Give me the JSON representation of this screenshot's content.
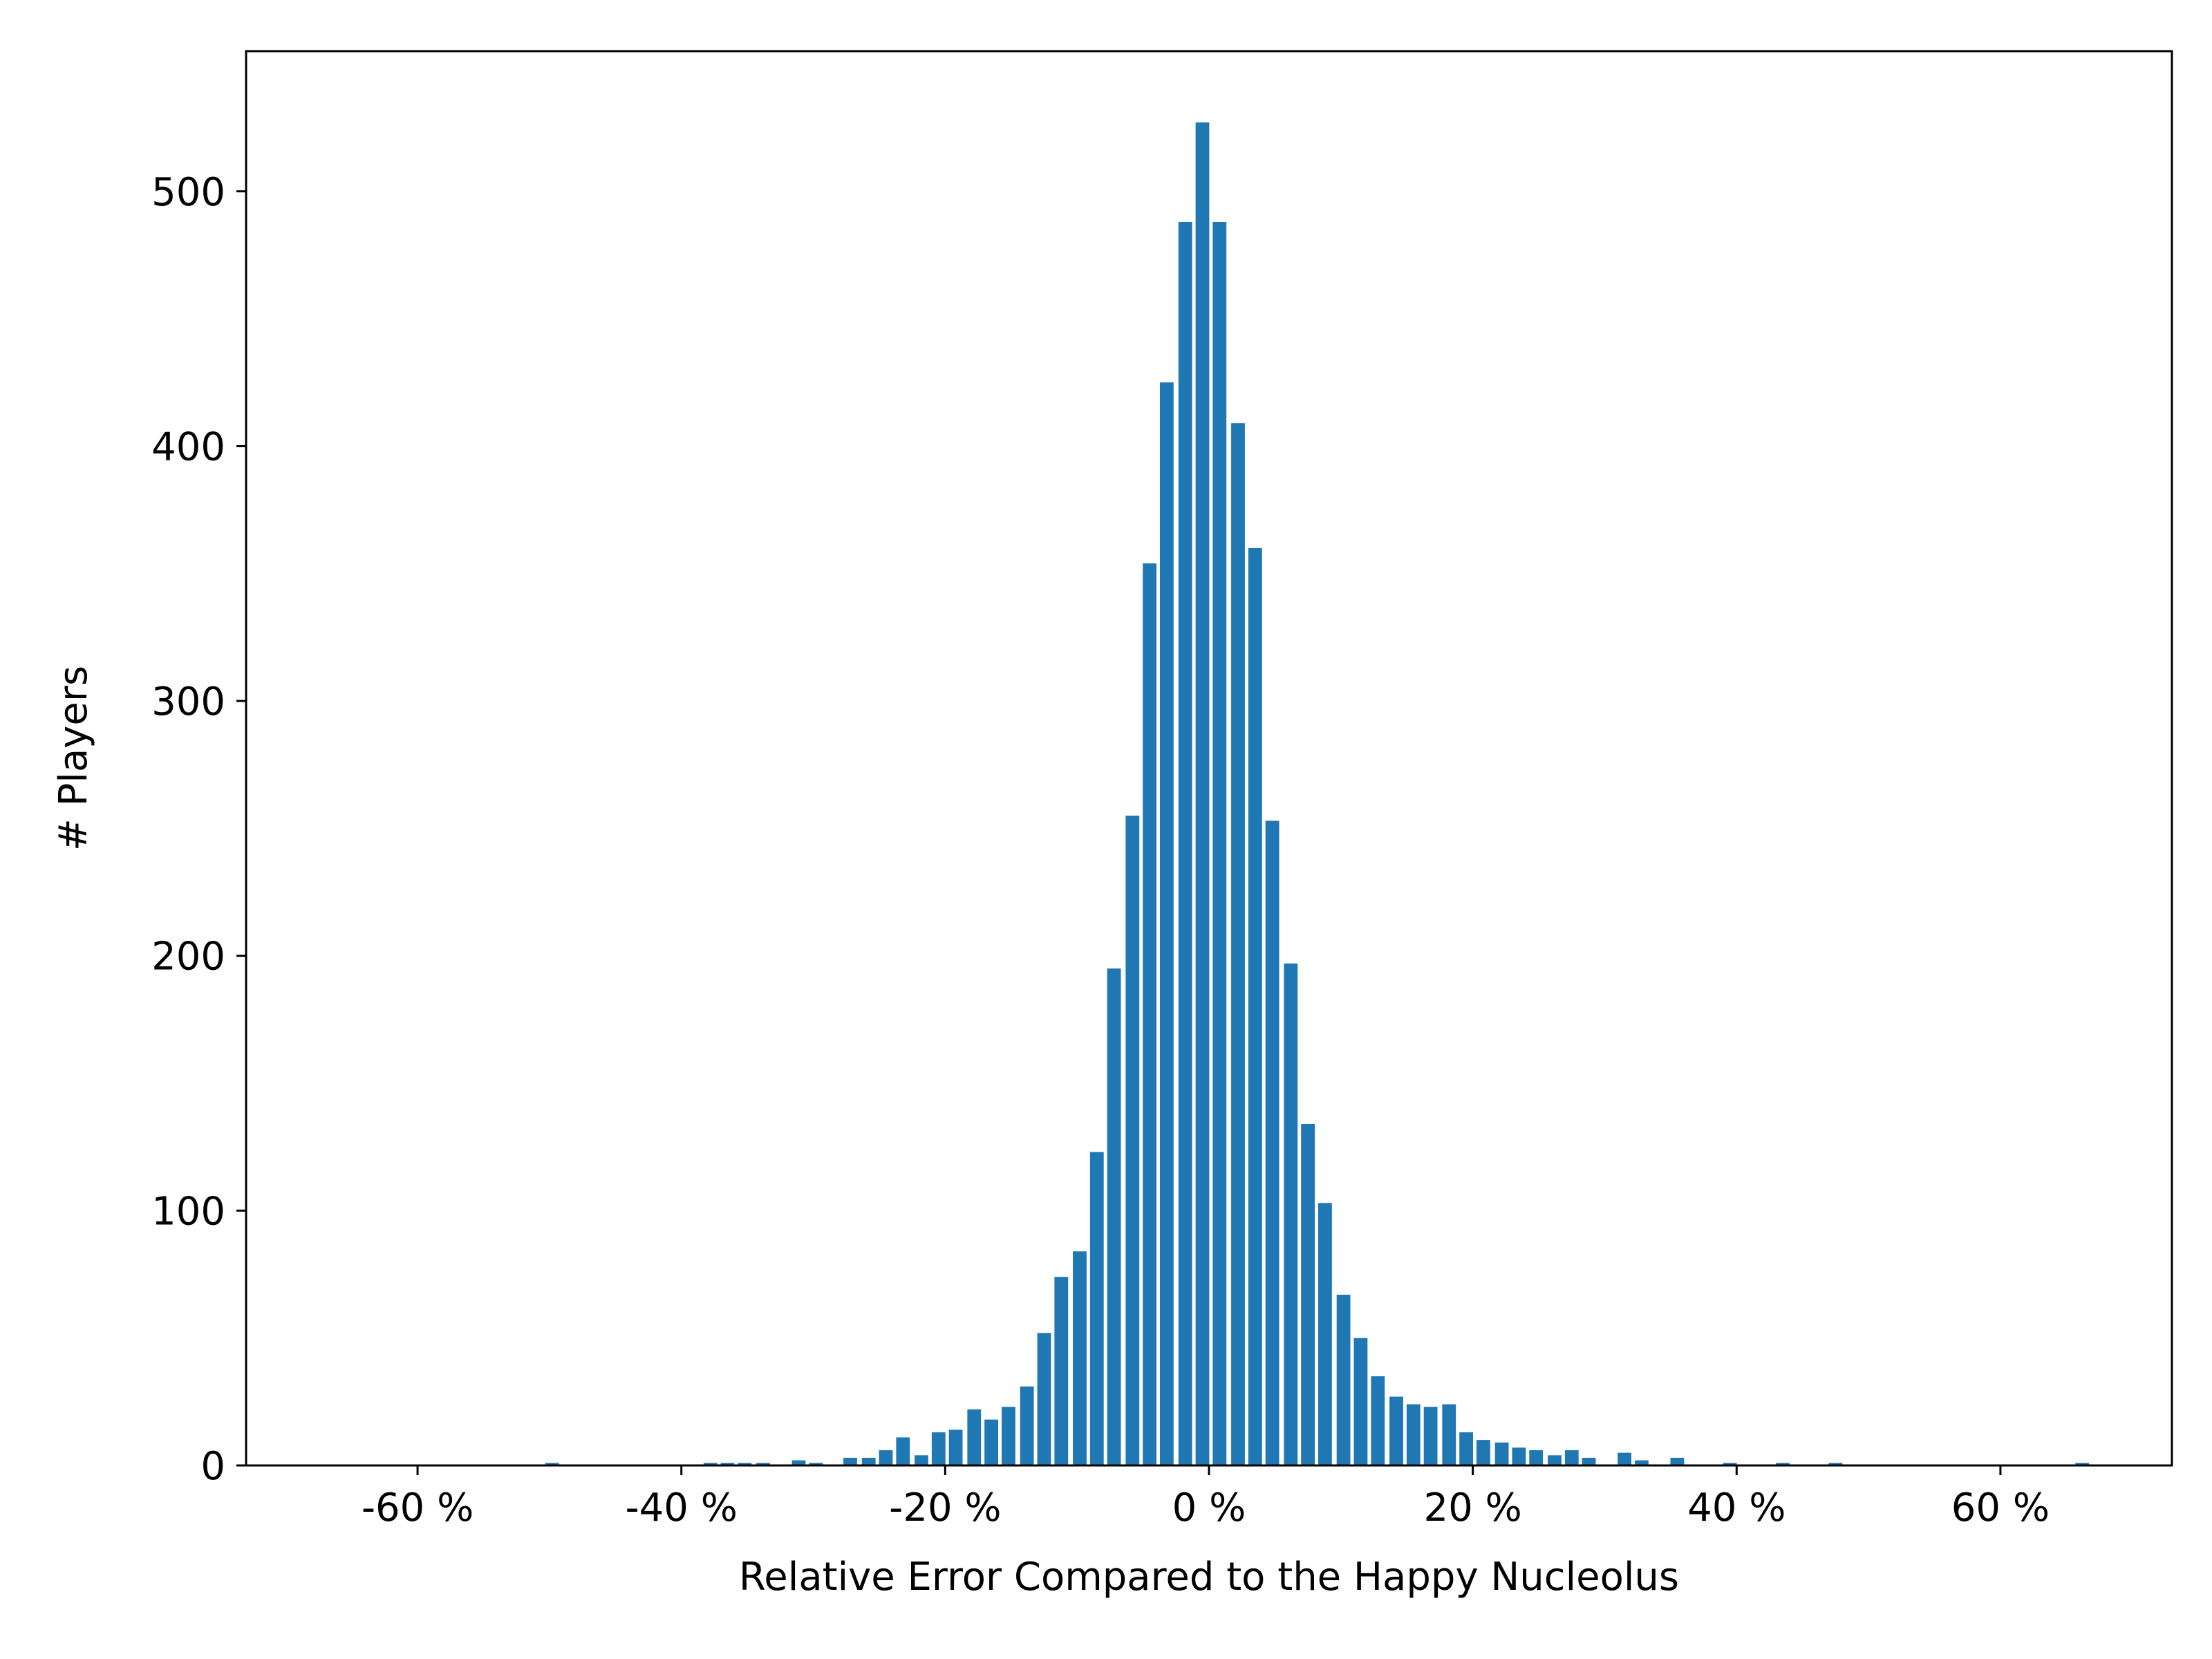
{
  "chart_data": {
    "type": "bar",
    "title": "",
    "xlabel": "Relative Error Compared to the Happy Nucleolus",
    "ylabel": "# Players",
    "xlim": [
      -73,
      73
    ],
    "ylim": [
      0,
      555
    ],
    "x_ticks": [
      -60,
      -40,
      -20,
      0,
      20,
      40,
      60
    ],
    "x_tick_labels": [
      "-60 %",
      "-40 %",
      "-20 %",
      "0 %",
      "20 %",
      "40 %",
      "60 %"
    ],
    "y_ticks": [
      0,
      100,
      200,
      300,
      400,
      500
    ],
    "y_tick_labels": [
      "0",
      "100",
      "200",
      "300",
      "400",
      "500"
    ],
    "bin_width": 1.33,
    "bar_color": "#1f77b4",
    "grid": false,
    "legend": "none",
    "x": [
      -49.8,
      -37.8,
      -36.5,
      -35.2,
      -33.8,
      -31.1,
      -29.8,
      -27.2,
      -25.8,
      -24.5,
      -23.2,
      -21.8,
      -20.5,
      -19.2,
      -17.8,
      -16.5,
      -15.2,
      -13.8,
      -12.5,
      -11.2,
      -9.8,
      -8.5,
      -7.2,
      -5.8,
      -4.5,
      -3.2,
      -1.8,
      -0.5,
      0.8,
      2.2,
      3.5,
      4.8,
      6.2,
      7.5,
      8.8,
      10.2,
      11.5,
      12.8,
      14.2,
      15.5,
      16.8,
      18.2,
      19.5,
      20.8,
      22.2,
      23.5,
      24.8,
      26.2,
      27.5,
      28.8,
      31.5,
      32.8,
      35.5,
      39.5,
      43.5,
      47.5,
      66.2
    ],
    "values": [
      1,
      1,
      1,
      1,
      1,
      2,
      1,
      3,
      3,
      6,
      11,
      4,
      13,
      14,
      22,
      18,
      23,
      31,
      52,
      74,
      84,
      123,
      195,
      255,
      354,
      425,
      488,
      527,
      488,
      409,
      360,
      253,
      197,
      134,
      103,
      67,
      50,
      35,
      27,
      24,
      23,
      24,
      13,
      10,
      9,
      7,
      6,
      4,
      6,
      3,
      5,
      2,
      3,
      1,
      1,
      1,
      1
    ]
  }
}
